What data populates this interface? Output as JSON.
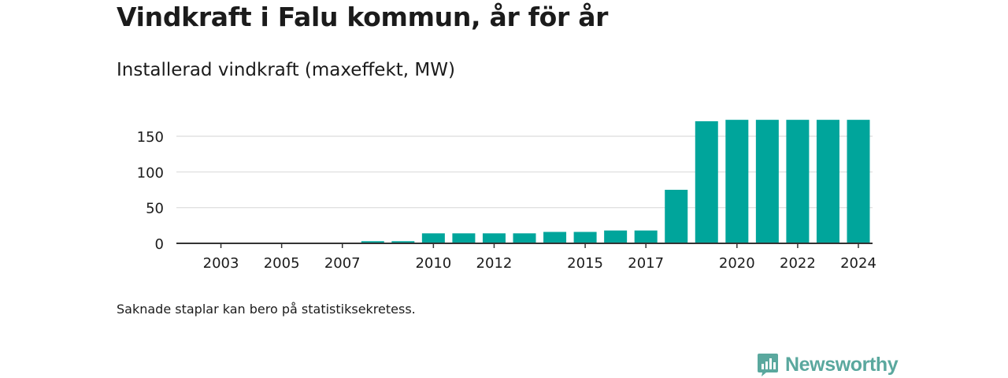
{
  "title": "Vindkraft i Falu kommun, år för år",
  "subtitle": "Installerad vindkraft (maxeffekt, MW)",
  "footnote": "Saknade staplar kan bero på statistiksekretess.",
  "brand": {
    "name": "Newsworthy",
    "icon": "newsworthy-logo-icon",
    "color": "#5aa89e"
  },
  "colors": {
    "bar": "#00a59b",
    "grid": "#dcdcdc",
    "axis": "#333333",
    "text": "#1b1b1b"
  },
  "chart_data": {
    "type": "bar",
    "title": "Installerad vindkraft (maxeffekt, MW)",
    "xlabel": "",
    "ylabel": "",
    "categories": [
      "2002",
      "2003",
      "2004",
      "2005",
      "2006",
      "2007",
      "2008",
      "2009",
      "2010",
      "2011",
      "2012",
      "2013",
      "2014",
      "2015",
      "2016",
      "2017",
      "2018",
      "2019",
      "2020",
      "2021",
      "2022",
      "2023",
      "2024"
    ],
    "values": [
      0,
      0,
      0,
      0,
      0,
      0,
      3,
      3,
      14,
      14,
      14,
      14,
      16,
      16,
      18,
      18,
      75,
      171,
      173,
      173,
      173,
      173,
      173
    ],
    "xtick_labels": [
      "2003",
      "2005",
      "2007",
      "2010",
      "2012",
      "2015",
      "2017",
      "2020",
      "2022",
      "2024"
    ],
    "yticks": [
      0,
      50,
      100,
      150
    ],
    "ylim": [
      0,
      190
    ],
    "grid": true,
    "legend": "none"
  }
}
